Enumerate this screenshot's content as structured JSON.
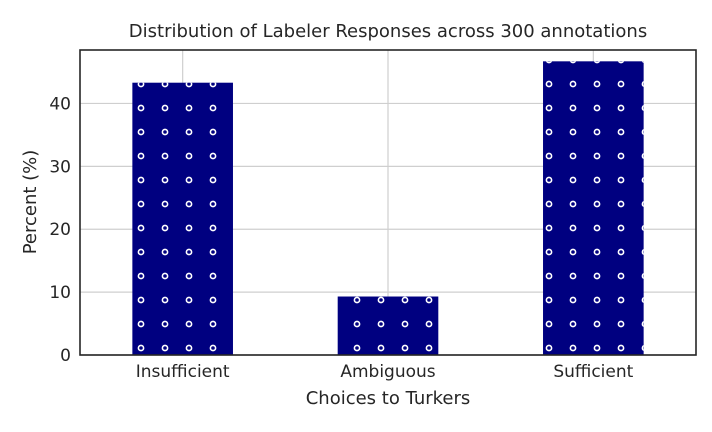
{
  "chart_data": {
    "type": "bar",
    "title": "Distribution of Labeler Responses across 300 annotations",
    "xlabel": "Choices to Turkers",
    "ylabel": "Percent (%)",
    "categories": [
      "Insufficient",
      "Ambiguous",
      "Sufficient"
    ],
    "values": [
      43.3,
      9.3,
      46.7
    ],
    "ylim": [
      0,
      48.5
    ],
    "yticks": [
      "0",
      "10",
      "20",
      "30",
      "40"
    ],
    "bar_color": "#000080",
    "hatch": "circles",
    "grid": true
  }
}
